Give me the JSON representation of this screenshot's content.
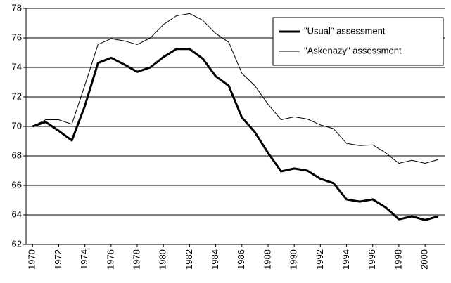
{
  "chart_data": {
    "type": "line",
    "x": [
      1970,
      1971,
      1972,
      1973,
      1974,
      1975,
      1976,
      1977,
      1978,
      1979,
      1980,
      1981,
      1982,
      1983,
      1984,
      1985,
      1986,
      1987,
      1988,
      1989,
      1990,
      1991,
      1992,
      1993,
      1994,
      1995,
      1996,
      1997,
      1998,
      1999,
      2000,
      2001
    ],
    "series": [
      {
        "name": "\"Usual\" assessment",
        "color": "#000000",
        "width": 3,
        "values": [
          70.0,
          70.3,
          69.7,
          69.05,
          71.4,
          74.3,
          74.65,
          74.2,
          73.7,
          74.0,
          74.7,
          75.25,
          75.25,
          74.6,
          73.4,
          72.75,
          70.6,
          69.6,
          68.2,
          66.95,
          67.15,
          67.0,
          66.45,
          66.15,
          65.05,
          64.9,
          65.05,
          64.5,
          63.7,
          63.9,
          63.65,
          63.9
        ]
      },
      {
        "name": "\"Askenazy\" assessment",
        "color": "#000000",
        "width": 1,
        "values": [
          70.0,
          70.45,
          70.45,
          70.15,
          72.8,
          75.55,
          75.95,
          75.8,
          75.55,
          76.0,
          76.9,
          77.5,
          77.65,
          77.2,
          76.3,
          75.7,
          73.6,
          72.75,
          71.5,
          70.45,
          70.65,
          70.5,
          70.1,
          69.85,
          68.85,
          68.7,
          68.75,
          68.2,
          67.5,
          67.7,
          67.5,
          67.75
        ]
      }
    ],
    "xlim": [
      1969.5,
      2001.5
    ],
    "xticks": [
      1970,
      1972,
      1974,
      1976,
      1978,
      1980,
      1982,
      1984,
      1986,
      1988,
      1990,
      1992,
      1994,
      1996,
      1998,
      2000
    ],
    "ylim": [
      62,
      78
    ],
    "yticks": [
      62,
      64,
      66,
      68,
      70,
      72,
      74,
      76,
      78
    ],
    "grid": true,
    "legend": "upper right"
  }
}
